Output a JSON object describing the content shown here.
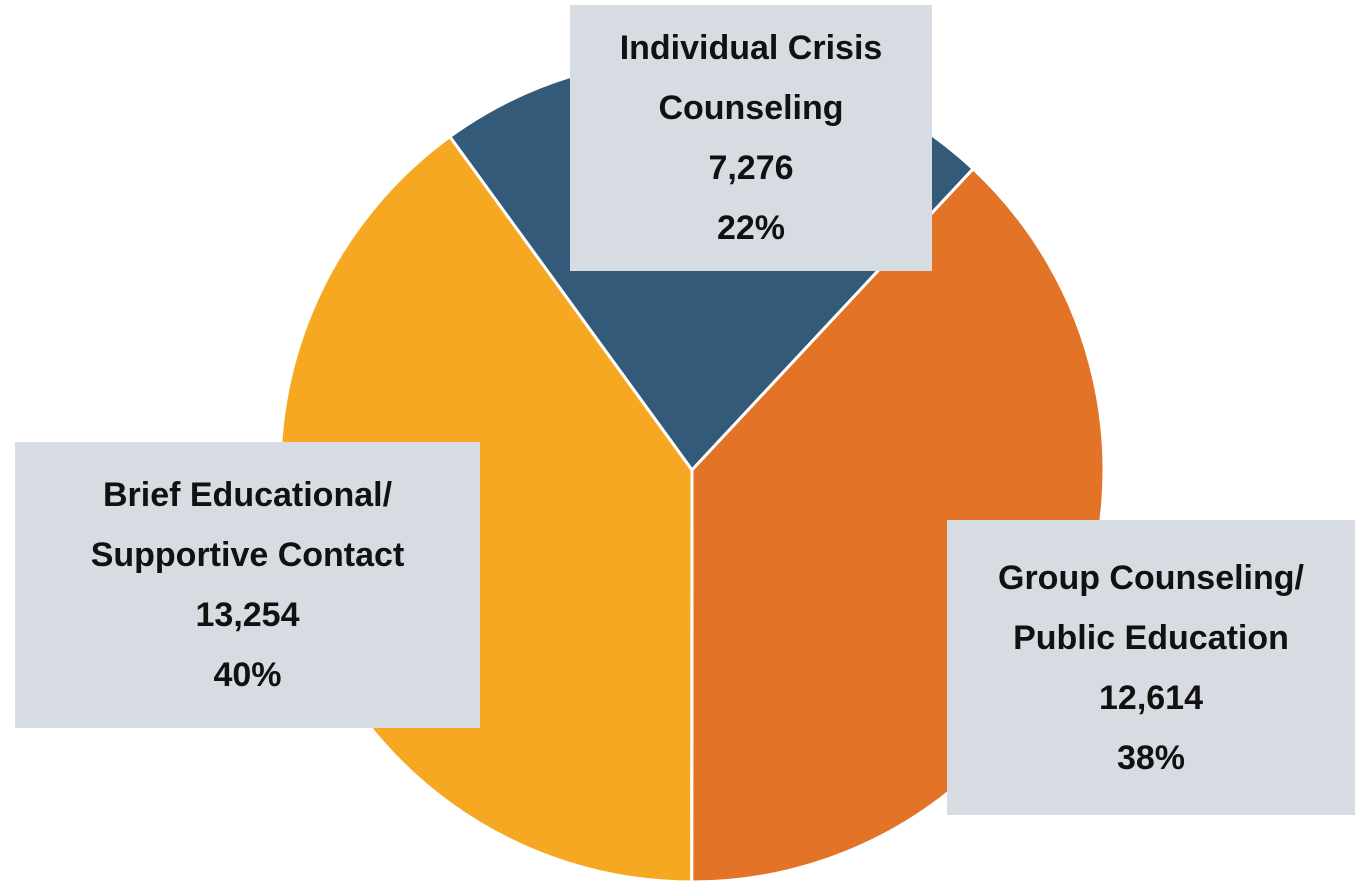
{
  "chart_data": {
    "type": "pie",
    "categories": [
      "Individual Crisis Counseling",
      "Group Counseling/ Public Education",
      "Brief Educational/ Supportive Contact"
    ],
    "values": [
      7276,
      12614,
      13254
    ],
    "value_labels": [
      "7,276",
      "12,614",
      "13,254"
    ],
    "percent_labels": [
      "22%",
      "38%",
      "40%"
    ],
    "colors": [
      "#335a78",
      "#e37326",
      "#f7a823"
    ],
    "start_angle": 324
  }
}
